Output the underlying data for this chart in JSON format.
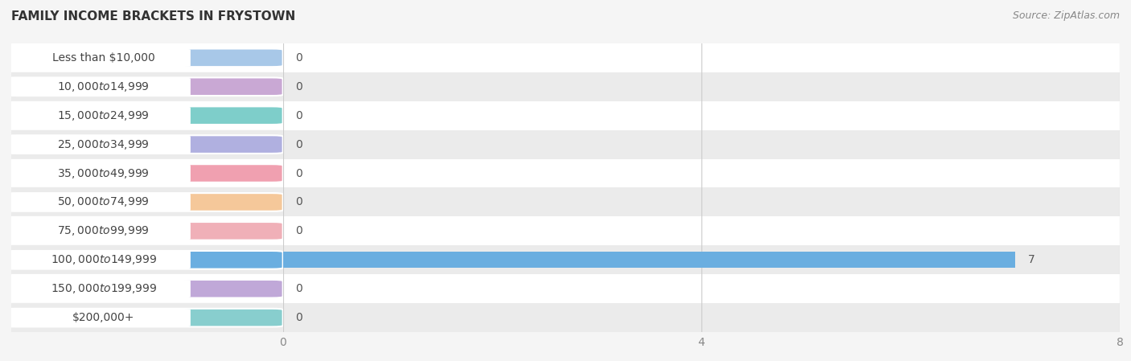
{
  "title": "Family Income Brackets in Frystown",
  "source": "Source: ZipAtlas.com",
  "categories": [
    "Less than $10,000",
    "$10,000 to $14,999",
    "$15,000 to $24,999",
    "$25,000 to $34,999",
    "$35,000 to $49,999",
    "$50,000 to $74,999",
    "$75,000 to $99,999",
    "$100,000 to $149,999",
    "$150,000 to $199,999",
    "$200,000+"
  ],
  "values": [
    0,
    0,
    0,
    0,
    0,
    0,
    0,
    7,
    0,
    0
  ],
  "bar_colors": [
    "#a8c8e8",
    "#c9a8d4",
    "#7ececa",
    "#b0b0e0",
    "#f0a0b0",
    "#f5c89a",
    "#f0b0b8",
    "#6aaee0",
    "#c0a8d8",
    "#88cece"
  ],
  "xlim": [
    0,
    8
  ],
  "xticks": [
    0,
    4,
    8
  ],
  "bg_color": "#f5f5f5",
  "row_colors": [
    "#ffffff",
    "#ebebeb"
  ],
  "title_fontsize": 11,
  "label_fontsize": 10,
  "tick_fontsize": 10,
  "value_fontsize": 10,
  "grid_color": "#cccccc",
  "label_text_color": "#444444",
  "value_text_color": "#555555",
  "source_fontsize": 9
}
